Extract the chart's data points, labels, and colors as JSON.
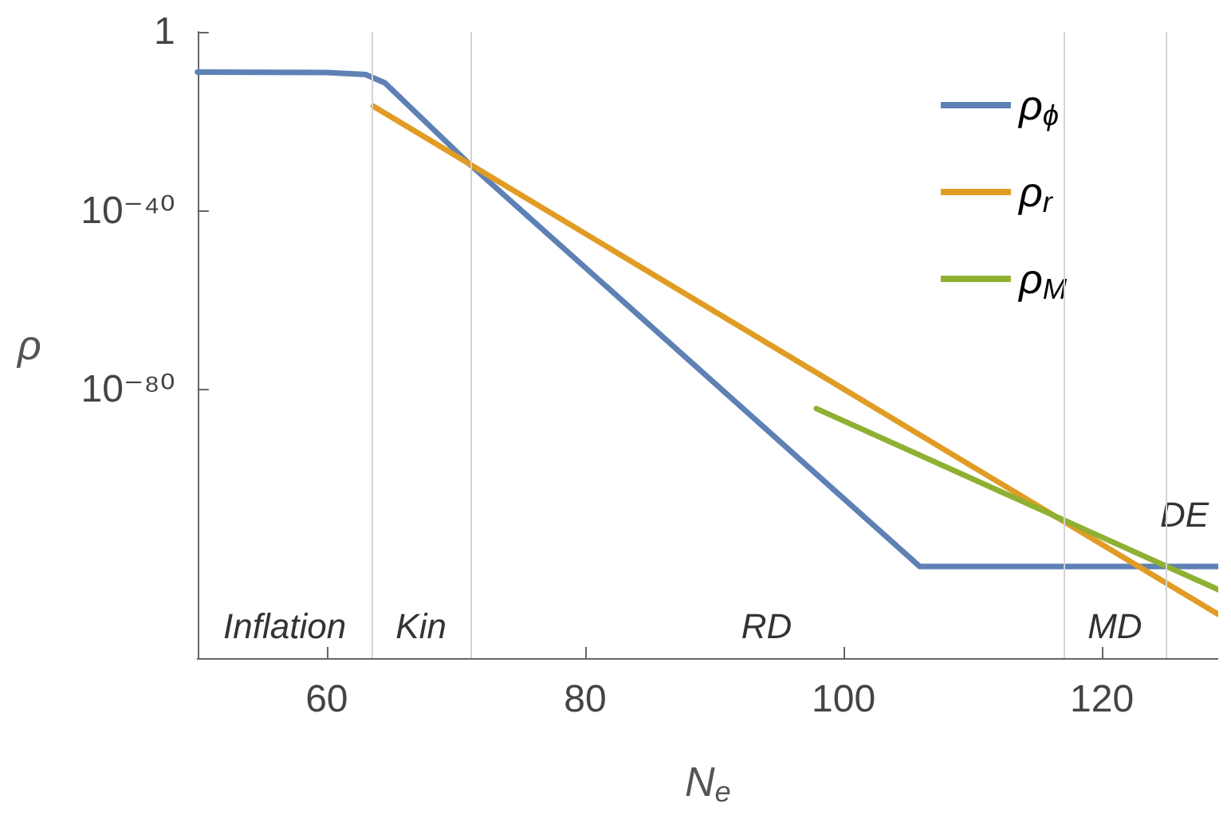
{
  "chart_data": {
    "type": "line",
    "xlabel": "N$_{e}$",
    "ylabel": "ρ",
    "log": "y",
    "xlim": [
      50,
      129
    ],
    "xticks": [
      60,
      80,
      100,
      120
    ],
    "ylim": [
      1e-140,
      1
    ],
    "yticks": [
      1,
      {
        "value": 1e-40,
        "label": "10⁻⁴⁰"
      },
      {
        "value": 1e-80,
        "label": "10⁻⁸⁰"
      }
    ],
    "legend": "top right",
    "series": [
      {
        "name": "ρ$_{ϕ}$",
        "color": "#5e81b5",
        "x": [
          50,
          60,
          63,
          64.5,
          71.1,
          105.9,
          129
        ],
        "values": [
          1e-09,
          8e-10,
          3e-10,
          4e-12,
          2e-30,
          3e-120,
          3e-120
        ]
      },
      {
        "name": "ρ$_{r}$",
        "color": "#e19c24",
        "x": [
          63.6,
          129
        ],
        "values": [
          2.5e-17,
          6e-131
        ]
      },
      {
        "name": "ρ$_{M}$",
        "color": "#8fb032",
        "x": [
          97.9,
          129
        ],
        "values": [
          6e-85,
          2e-125
        ]
      }
    ],
    "ref_lines": [
      {
        "axis": "x",
        "value": 63.5,
        "color": "#d4d4d4"
      },
      {
        "axis": "x",
        "value": 71.1,
        "color": "#d4d4d4"
      },
      {
        "axis": "x",
        "value": 117,
        "color": "#d4d4d4"
      },
      {
        "axis": "x",
        "value": 125,
        "color": "#d4d4d4"
      }
    ],
    "annotations": [
      "Inflation",
      "Kin",
      "RD",
      "MD",
      "DE"
    ]
  }
}
